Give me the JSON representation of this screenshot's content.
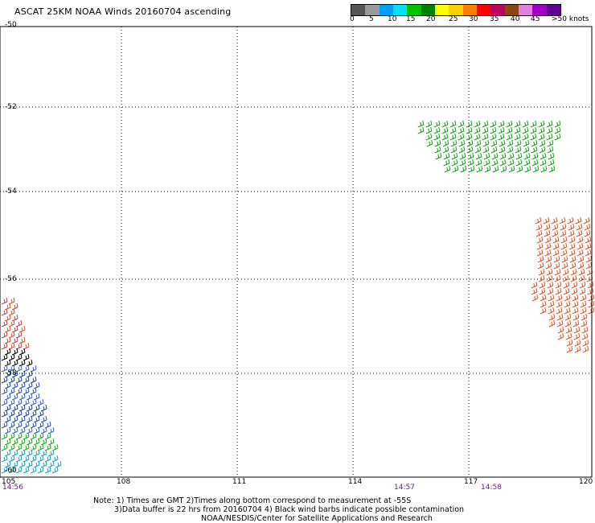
{
  "title": "ASCAT 25KM NOAA Winds 20160704 ascending",
  "legend": {
    "labels": [
      "0",
      "5",
      "10",
      "15",
      "20",
      "25",
      "30",
      "35",
      "40",
      "45",
      ">50 knots"
    ],
    "colors": [
      "#555555",
      "#999999",
      "#00a0ff",
      "#00e0ff",
      "#00c000",
      "#008000",
      "#ffff00",
      "#ffd000",
      "#ff8000",
      "#ff0000",
      "#c00060",
      "#8b4513",
      "#e080e0",
      "#a000c0",
      "#600090"
    ]
  },
  "axes": {
    "lat_labels": [
      "-50",
      "-52",
      "-54",
      "-56",
      "-58",
      "-60"
    ],
    "lon_labels": [
      "105",
      "108",
      "111",
      "114",
      "117",
      "120"
    ],
    "time_labels": [
      "14:56",
      "14:57",
      "14:58"
    ]
  },
  "notes": {
    "line1": "Note: 1) Times are GMT 2)Times along bottom correspond to measurement at -55S",
    "line2": "3)Data buffer is 22 hrs from 20160704 4) Black wind barbs indicate possible contamination",
    "line3": "NOAA/NESDIS/Center for Satellite Applications and Research"
  }
}
